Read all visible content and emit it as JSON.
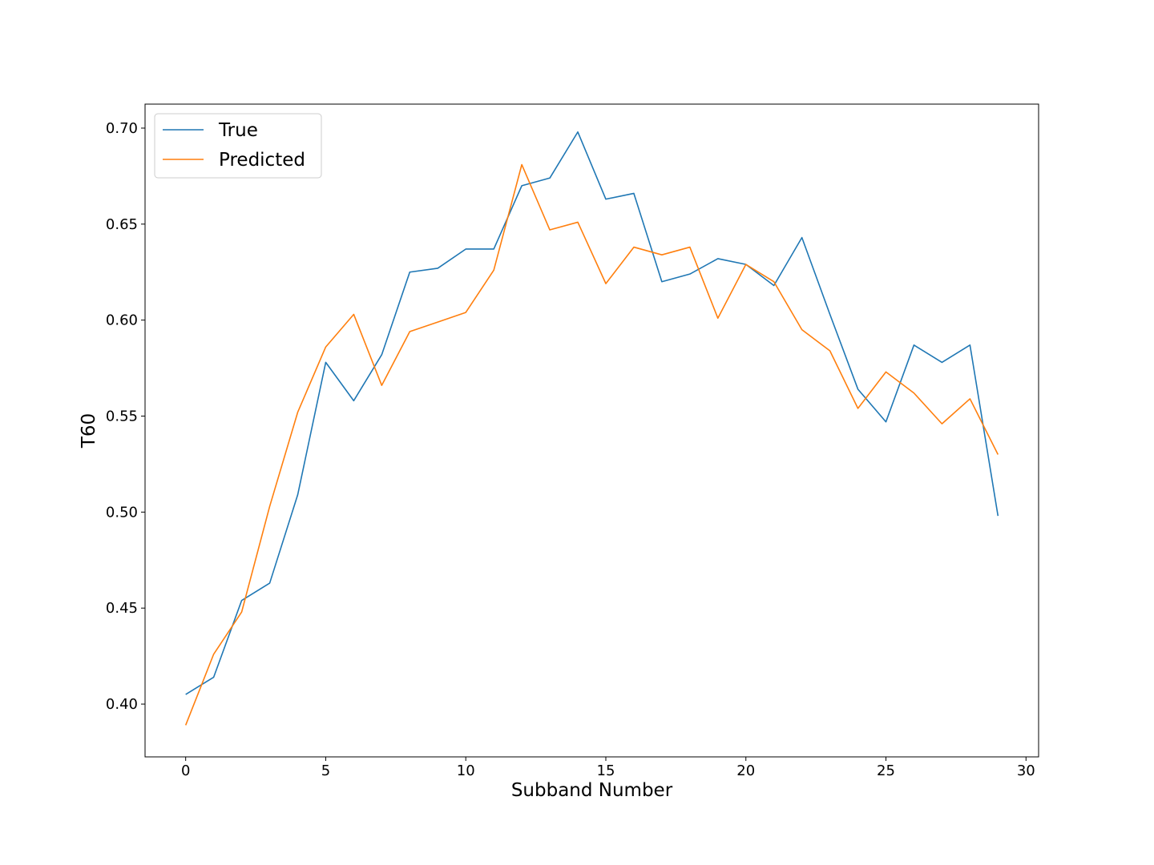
{
  "chart_data": {
    "type": "line",
    "title": "",
    "xlabel": "Subband Number",
    "ylabel": "T60",
    "xlim": [
      -1.45,
      30.45
    ],
    "ylim": [
      0.3725,
      0.7125
    ],
    "xticks": [
      0,
      5,
      10,
      15,
      20,
      25,
      30
    ],
    "xtick_labels": [
      "0",
      "5",
      "10",
      "15",
      "20",
      "25",
      "30"
    ],
    "yticks": [
      0.4,
      0.45,
      0.5,
      0.55,
      0.6,
      0.65,
      0.7
    ],
    "ytick_labels": [
      "0.40",
      "0.45",
      "0.50",
      "0.55",
      "0.60",
      "0.65",
      "0.70"
    ],
    "grid": false,
    "legend_position": "upper-left",
    "x": [
      0,
      1,
      2,
      3,
      4,
      5,
      6,
      7,
      8,
      9,
      10,
      11,
      12,
      13,
      14,
      15,
      16,
      17,
      18,
      19,
      20,
      21,
      22,
      23,
      24,
      25,
      26,
      27,
      28,
      29
    ],
    "series": [
      {
        "name": "True",
        "color": "#1f77b4",
        "values": [
          0.405,
          0.414,
          0.454,
          0.463,
          0.509,
          0.578,
          0.558,
          0.582,
          0.625,
          0.627,
          0.637,
          0.637,
          0.67,
          0.674,
          0.698,
          0.663,
          0.666,
          0.62,
          0.624,
          0.632,
          0.629,
          0.618,
          0.643,
          0.603,
          0.564,
          0.547,
          0.587,
          0.578,
          0.587,
          0.498
        ]
      },
      {
        "name": "Predicted",
        "color": "#ff7f0e",
        "values": [
          0.389,
          0.426,
          0.448,
          0.503,
          0.552,
          0.586,
          0.603,
          0.566,
          0.594,
          0.599,
          0.604,
          0.626,
          0.681,
          0.647,
          0.651,
          0.619,
          0.638,
          0.634,
          0.638,
          0.601,
          0.629,
          0.62,
          0.595,
          0.584,
          0.554,
          0.573,
          0.562,
          0.546,
          0.559,
          0.53
        ]
      }
    ]
  }
}
